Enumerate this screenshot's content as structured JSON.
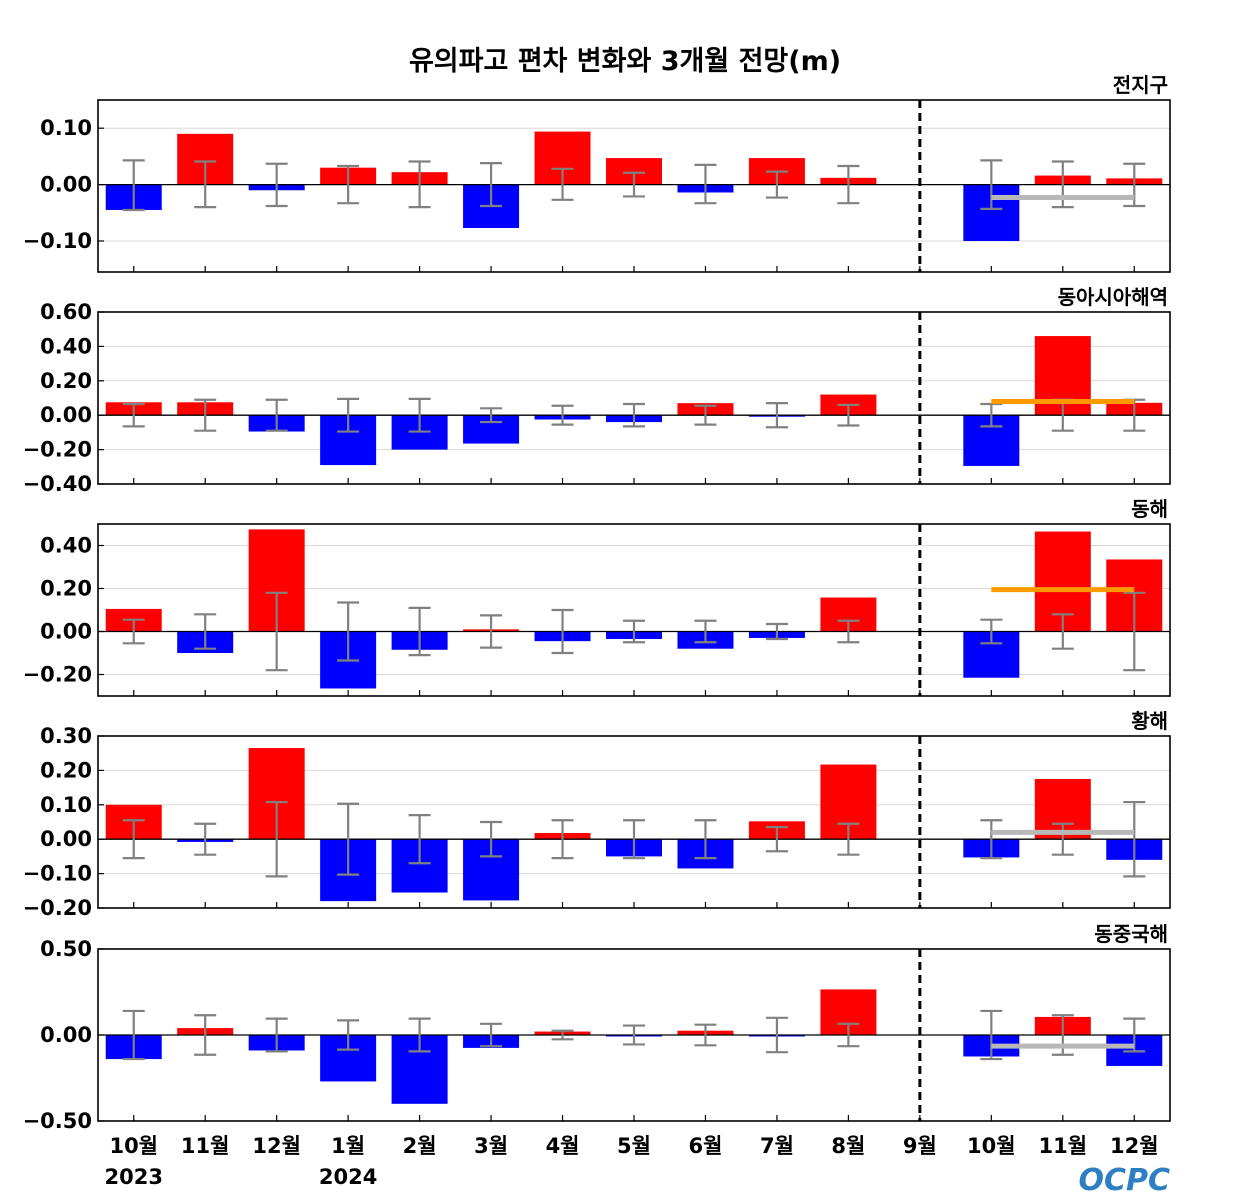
{
  "title": "유의파고 편차 변화와 3개월 전망(m)",
  "logo": "OCPC",
  "colors": {
    "positive": "#ff0000",
    "negative": "#0000ff",
    "errorbar": "#808080",
    "climatology_gray": "#b8b8b8",
    "climatology_orange": "#ff9900"
  },
  "chart_data": {
    "type": "bar",
    "categories": [
      "10월",
      "11월",
      "12월",
      "1월",
      "2월",
      "3월",
      "4월",
      "5월",
      "6월",
      "7월",
      "8월",
      "9월",
      "10월",
      "11월",
      "12월"
    ],
    "year_labels": [
      {
        "index": 0,
        "label": "2023"
      },
      {
        "index": 3,
        "label": "2024"
      }
    ],
    "divider_after_index": 11,
    "panels": [
      {
        "title": "전지구",
        "ylim": [
          -0.155,
          0.15
        ],
        "yticks": [
          0.1,
          0.0,
          -0.1
        ],
        "yticklabels": [
          "0.10",
          "0.00",
          "−0.10"
        ],
        "values": [
          -0.045,
          0.09,
          -0.01,
          0.03,
          0.022,
          -0.077,
          0.094,
          0.047,
          -0.014,
          0.047,
          0.012,
          0.0,
          -0.1,
          0.016,
          0.011
        ],
        "error_high": [
          0.043,
          0.041,
          0.037,
          0.033,
          0.041,
          0.038,
          0.028,
          0.021,
          0.035,
          0.023,
          0.033,
          null,
          0.043,
          0.041,
          0.037
        ],
        "error_low": [
          -0.045,
          -0.04,
          -0.038,
          -0.033,
          -0.04,
          -0.038,
          -0.027,
          -0.021,
          -0.033,
          -0.023,
          -0.033,
          null,
          -0.043,
          -0.04,
          -0.038
        ],
        "outlook_line": {
          "value": -0.023,
          "from_index": 12,
          "to_index": 14,
          "color": "gray"
        }
      },
      {
        "title": "동아시아해역",
        "ylim": [
          -0.4,
          0.6
        ],
        "yticks": [
          0.6,
          0.4,
          0.2,
          0.0,
          -0.2,
          -0.4
        ],
        "yticklabels": [
          "0.60",
          "0.40",
          "0.20",
          "0.00",
          "−0.20",
          "−0.40"
        ],
        "values": [
          0.075,
          0.075,
          -0.095,
          -0.29,
          -0.2,
          -0.165,
          -0.025,
          -0.04,
          0.07,
          -0.005,
          0.12,
          0.0,
          -0.295,
          0.46,
          0.072
        ],
        "error_high": [
          0.065,
          0.09,
          0.09,
          0.095,
          0.095,
          0.04,
          0.055,
          0.065,
          0.055,
          0.07,
          0.06,
          null,
          0.065,
          0.09,
          0.09
        ],
        "error_low": [
          -0.065,
          -0.09,
          -0.09,
          -0.095,
          -0.095,
          -0.04,
          -0.055,
          -0.065,
          -0.055,
          -0.07,
          -0.06,
          null,
          -0.065,
          -0.09,
          -0.09
        ],
        "outlook_line": {
          "value": 0.08,
          "from_index": 12,
          "to_index": 14,
          "color": "orange"
        }
      },
      {
        "title": "동해",
        "ylim": [
          -0.3,
          0.5
        ],
        "yticks": [
          0.4,
          0.2,
          0.0,
          -0.2
        ],
        "yticklabels": [
          "0.40",
          "0.20",
          "0.00",
          "−0.20"
        ],
        "values": [
          0.105,
          -0.1,
          0.475,
          -0.265,
          -0.085,
          0.01,
          -0.045,
          -0.035,
          -0.08,
          -0.03,
          0.158,
          0.0,
          -0.215,
          0.465,
          0.335
        ],
        "error_high": [
          0.055,
          0.08,
          0.18,
          0.135,
          0.11,
          0.075,
          0.1,
          0.05,
          0.05,
          0.035,
          0.05,
          null,
          0.055,
          0.08,
          0.18
        ],
        "error_low": [
          -0.055,
          -0.08,
          -0.18,
          -0.135,
          -0.11,
          -0.075,
          -0.1,
          -0.05,
          -0.05,
          -0.035,
          -0.05,
          null,
          -0.055,
          -0.08,
          -0.18
        ],
        "outlook_line": {
          "value": 0.195,
          "from_index": 12,
          "to_index": 14,
          "color": "orange"
        }
      },
      {
        "title": "황해",
        "ylim": [
          -0.2,
          0.3
        ],
        "yticks": [
          0.3,
          0.2,
          0.1,
          0.0,
          -0.1,
          -0.2
        ],
        "yticklabels": [
          "0.30",
          "0.20",
          "0.10",
          "0.00",
          "−0.10",
          "−0.20"
        ],
        "values": [
          0.1,
          -0.008,
          0.265,
          -0.18,
          -0.155,
          -0.178,
          0.018,
          -0.05,
          -0.085,
          0.052,
          0.217,
          0.0,
          -0.053,
          0.175,
          -0.06
        ],
        "error_high": [
          0.055,
          0.045,
          0.108,
          0.103,
          0.07,
          0.05,
          0.055,
          0.055,
          0.055,
          0.035,
          0.045,
          null,
          0.055,
          0.045,
          0.108
        ],
        "error_low": [
          -0.055,
          -0.045,
          -0.108,
          -0.103,
          -0.07,
          -0.05,
          -0.055,
          -0.055,
          -0.055,
          -0.035,
          -0.045,
          null,
          -0.055,
          -0.045,
          -0.108
        ],
        "outlook_line": {
          "value": 0.02,
          "from_index": 12,
          "to_index": 14,
          "color": "gray"
        }
      },
      {
        "title": "동중국해",
        "ylim": [
          -0.5,
          0.5
        ],
        "yticks": [
          0.5,
          0.0,
          -0.5
        ],
        "yticklabels": [
          "0.50",
          "0.00",
          "−0.50"
        ],
        "values": [
          -0.14,
          0.04,
          -0.09,
          -0.27,
          -0.4,
          -0.075,
          0.02,
          -0.005,
          0.025,
          -0.005,
          0.265,
          0.0,
          -0.125,
          0.105,
          -0.18
        ],
        "error_high": [
          0.14,
          0.115,
          0.095,
          0.085,
          0.095,
          0.065,
          0.025,
          0.055,
          0.06,
          0.1,
          0.065,
          null,
          0.14,
          0.115,
          0.095
        ],
        "error_low": [
          -0.14,
          -0.115,
          -0.095,
          -0.085,
          -0.095,
          -0.065,
          -0.025,
          -0.055,
          -0.06,
          -0.1,
          -0.065,
          null,
          -0.14,
          -0.115,
          -0.095
        ],
        "outlook_line": {
          "value": -0.065,
          "from_index": 12,
          "to_index": 14,
          "color": "gray"
        }
      }
    ]
  }
}
